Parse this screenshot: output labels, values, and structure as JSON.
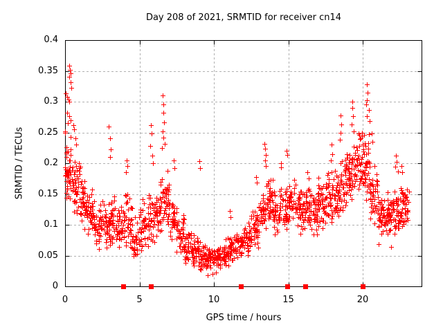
{
  "chart_data": {
    "type": "scatter",
    "title": "Day 208 of 2021, SRMTID for receiver cn14",
    "xlabel": "GPS time / hours",
    "ylabel": "SRMTID / TECUs",
    "xlim": [
      0,
      24
    ],
    "ylim": [
      0,
      0.4
    ],
    "x_ticks": [
      [
        0,
        "0"
      ],
      [
        5,
        "5"
      ],
      [
        10,
        "10"
      ],
      [
        15,
        "15"
      ],
      [
        20,
        "20"
      ]
    ],
    "y_ticks": [
      [
        0,
        "0"
      ],
      [
        0.05,
        "0.05"
      ],
      [
        0.1,
        "0.1"
      ],
      [
        0.15,
        "0.15"
      ],
      [
        0.2,
        "0.2"
      ],
      [
        0.25,
        "0.25"
      ],
      [
        0.3,
        "0.3"
      ],
      [
        0.35,
        "0.35"
      ],
      [
        0.4,
        "0.4"
      ]
    ],
    "grid": "dashed",
    "legend_position": "none",
    "marker": "plus",
    "marker_color": "#ff0000",
    "grid_color": "#b0b0b0",
    "border_color": "#000000",
    "event_markers": {
      "marker": "filled-square",
      "y": 0,
      "x": [
        3.9,
        5.77,
        11.81,
        14.93,
        16.14,
        19.98
      ]
    },
    "seed": 1337,
    "density_bins": [
      [
        0.0,
        0.5,
        0.13,
        0.24,
        46
      ],
      [
        0.5,
        1.0,
        0.11,
        0.22,
        42
      ],
      [
        1.0,
        1.5,
        0.09,
        0.18,
        40
      ],
      [
        1.5,
        2.0,
        0.07,
        0.16,
        38
      ],
      [
        2.0,
        2.5,
        0.05,
        0.14,
        34
      ],
      [
        2.5,
        3.0,
        0.06,
        0.14,
        34
      ],
      [
        3.0,
        3.5,
        0.06,
        0.15,
        36
      ],
      [
        3.5,
        4.0,
        0.05,
        0.14,
        34
      ],
      [
        4.0,
        4.5,
        0.06,
        0.16,
        36
      ],
      [
        4.5,
        5.0,
        0.04,
        0.12,
        34
      ],
      [
        5.0,
        5.5,
        0.05,
        0.15,
        34
      ],
      [
        5.5,
        6.0,
        0.06,
        0.16,
        36
      ],
      [
        6.0,
        6.5,
        0.08,
        0.18,
        36
      ],
      [
        6.5,
        7.0,
        0.09,
        0.21,
        40
      ],
      [
        7.0,
        7.5,
        0.07,
        0.15,
        36
      ],
      [
        7.5,
        8.0,
        0.05,
        0.12,
        34
      ],
      [
        8.0,
        8.5,
        0.035,
        0.1,
        34
      ],
      [
        8.5,
        9.0,
        0.03,
        0.085,
        34
      ],
      [
        9.0,
        9.5,
        0.025,
        0.075,
        34
      ],
      [
        9.5,
        10.0,
        0.02,
        0.065,
        34
      ],
      [
        10.0,
        10.5,
        0.025,
        0.075,
        34
      ],
      [
        10.5,
        11.0,
        0.03,
        0.085,
        34
      ],
      [
        11.0,
        11.5,
        0.035,
        0.09,
        34
      ],
      [
        11.5,
        12.0,
        0.04,
        0.1,
        34
      ],
      [
        12.0,
        12.5,
        0.05,
        0.11,
        36
      ],
      [
        12.5,
        13.0,
        0.06,
        0.13,
        36
      ],
      [
        13.0,
        13.5,
        0.08,
        0.16,
        38
      ],
      [
        13.5,
        14.0,
        0.1,
        0.19,
        38
      ],
      [
        14.0,
        14.5,
        0.08,
        0.16,
        36
      ],
      [
        14.5,
        15.0,
        0.09,
        0.17,
        36
      ],
      [
        15.0,
        15.5,
        0.1,
        0.18,
        36
      ],
      [
        15.5,
        16.0,
        0.08,
        0.16,
        36
      ],
      [
        16.0,
        16.5,
        0.09,
        0.17,
        36
      ],
      [
        16.5,
        17.0,
        0.08,
        0.16,
        36
      ],
      [
        17.0,
        17.5,
        0.09,
        0.18,
        38
      ],
      [
        17.5,
        18.0,
        0.1,
        0.19,
        38
      ],
      [
        18.0,
        18.5,
        0.1,
        0.2,
        38
      ],
      [
        18.5,
        19.0,
        0.12,
        0.22,
        38
      ],
      [
        19.0,
        19.5,
        0.13,
        0.24,
        40
      ],
      [
        19.5,
        20.0,
        0.15,
        0.26,
        40
      ],
      [
        20.0,
        20.5,
        0.13,
        0.27,
        42
      ],
      [
        20.5,
        21.0,
        0.1,
        0.2,
        38
      ],
      [
        21.0,
        21.5,
        0.08,
        0.16,
        38
      ],
      [
        21.5,
        22.0,
        0.08,
        0.155,
        38
      ],
      [
        22.0,
        22.5,
        0.08,
        0.16,
        40
      ],
      [
        22.5,
        23.1,
        0.09,
        0.17,
        44
      ]
    ],
    "outlier_points": [
      [
        0.28,
        0.358
      ],
      [
        0.33,
        0.352
      ],
      [
        0.38,
        0.346
      ],
      [
        0.3,
        0.34
      ],
      [
        0.36,
        0.332
      ],
      [
        0.4,
        0.322
      ],
      [
        0.05,
        0.313
      ],
      [
        0.12,
        0.308
      ],
      [
        0.22,
        0.303
      ],
      [
        0.3,
        0.3
      ],
      [
        0.02,
        0.252
      ],
      [
        0.12,
        0.282
      ],
      [
        0.28,
        0.276
      ],
      [
        0.35,
        0.27
      ],
      [
        0.18,
        0.265
      ],
      [
        0.0,
        0.25
      ],
      [
        0.38,
        0.243
      ],
      [
        0.55,
        0.262
      ],
      [
        0.6,
        0.255
      ],
      [
        0.7,
        0.24
      ],
      [
        0.75,
        0.23
      ],
      [
        2.95,
        0.26
      ],
      [
        3.0,
        0.24
      ],
      [
        3.05,
        0.222
      ],
      [
        3.0,
        0.21
      ],
      [
        4.15,
        0.205
      ],
      [
        4.2,
        0.195
      ],
      [
        4.1,
        0.185
      ],
      [
        5.75,
        0.262
      ],
      [
        5.8,
        0.248
      ],
      [
        5.7,
        0.228
      ],
      [
        5.85,
        0.212
      ],
      [
        5.9,
        0.2
      ],
      [
        6.55,
        0.31
      ],
      [
        6.6,
        0.295
      ],
      [
        6.62,
        0.282
      ],
      [
        6.65,
        0.266
      ],
      [
        6.55,
        0.252
      ],
      [
        6.6,
        0.242
      ],
      [
        6.7,
        0.232
      ],
      [
        6.5,
        0.225
      ],
      [
        7.3,
        0.205
      ],
      [
        7.35,
        0.192
      ],
      [
        9.0,
        0.203
      ],
      [
        9.05,
        0.192
      ],
      [
        9.6,
        0.018
      ],
      [
        9.9,
        0.02
      ],
      [
        10.15,
        0.022
      ],
      [
        11.05,
        0.122
      ],
      [
        11.1,
        0.112
      ],
      [
        12.85,
        0.178
      ],
      [
        12.9,
        0.168
      ],
      [
        13.4,
        0.232
      ],
      [
        13.45,
        0.224
      ],
      [
        13.5,
        0.214
      ],
      [
        13.42,
        0.204
      ],
      [
        13.5,
        0.196
      ],
      [
        14.5,
        0.2
      ],
      [
        14.52,
        0.193
      ],
      [
        14.9,
        0.22
      ],
      [
        14.95,
        0.213
      ],
      [
        15.5,
        0.165
      ],
      [
        16.3,
        0.185
      ],
      [
        16.35,
        0.175
      ],
      [
        17.9,
        0.23
      ],
      [
        17.95,
        0.215
      ],
      [
        17.85,
        0.205
      ],
      [
        18.5,
        0.278
      ],
      [
        18.55,
        0.263
      ],
      [
        18.5,
        0.25
      ],
      [
        18.45,
        0.238
      ],
      [
        19.3,
        0.3
      ],
      [
        19.32,
        0.29
      ],
      [
        19.35,
        0.276
      ],
      [
        19.25,
        0.263
      ],
      [
        19.4,
        0.252
      ],
      [
        20.3,
        0.328
      ],
      [
        20.33,
        0.315
      ],
      [
        20.28,
        0.302
      ],
      [
        20.25,
        0.295
      ],
      [
        20.4,
        0.286
      ],
      [
        20.3,
        0.276
      ],
      [
        20.45,
        0.268
      ],
      [
        20.6,
        0.248
      ],
      [
        20.65,
        0.235
      ],
      [
        21.05,
        0.068
      ],
      [
        21.9,
        0.064
      ],
      [
        22.25,
        0.212
      ],
      [
        22.3,
        0.202
      ],
      [
        22.2,
        0.194
      ],
      [
        22.35,
        0.186
      ],
      [
        22.6,
        0.195
      ],
      [
        22.65,
        0.185
      ]
    ]
  }
}
